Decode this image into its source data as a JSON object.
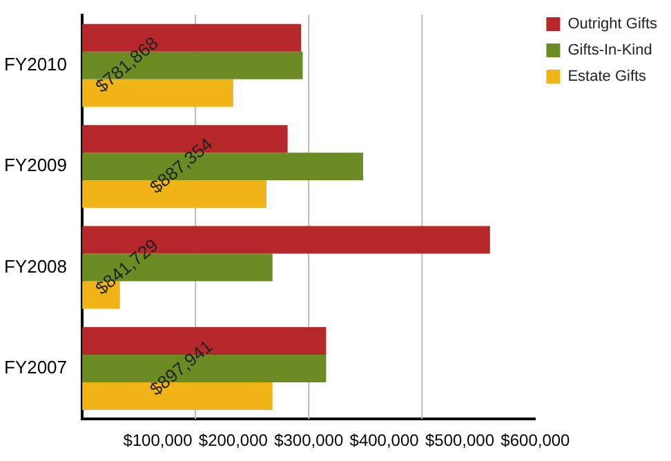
{
  "chart_data": {
    "type": "bar",
    "orientation": "horizontal",
    "categories": [
      "FY2010",
      "FY2009",
      "FY2008",
      "FY2007"
    ],
    "series": [
      {
        "name": "Outright Gifts",
        "color": "#b52728",
        "values": [
          290000,
          272000,
          540000,
          323000
        ]
      },
      {
        "name": "Gifts-In-Kind",
        "color": "#6a8c23",
        "values": [
          292000,
          372000,
          252000,
          323000
        ]
      },
      {
        "name": "Estate Gifts",
        "color": "#f0b417",
        "values": [
          200000,
          244000,
          50000,
          252000
        ]
      }
    ],
    "xlim": [
      0,
      600000
    ],
    "xticks": [
      {
        "value": 0,
        "label": null
      },
      {
        "value": 100000,
        "label": "$100,000"
      },
      {
        "value": 200000,
        "label": "$200,000"
      },
      {
        "value": 300000,
        "label": "$300,000"
      },
      {
        "value": 400000,
        "label": "$400,000"
      },
      {
        "value": 500000,
        "label": "$500,000"
      },
      {
        "value": 600000,
        "label": "$600,000"
      }
    ],
    "grid": false,
    "ref_lines": [
      {
        "axis": "x",
        "value": 150000,
        "color": "#bbbbbb"
      },
      {
        "axis": "x",
        "value": 300000,
        "color": "#bbbbbb"
      },
      {
        "axis": "x",
        "value": 450000,
        "color": "#bbbbbb"
      }
    ],
    "annotations": [
      "$781,868",
      "$887,354",
      "$841,729",
      "$897,941"
    ],
    "legend": "top right"
  }
}
